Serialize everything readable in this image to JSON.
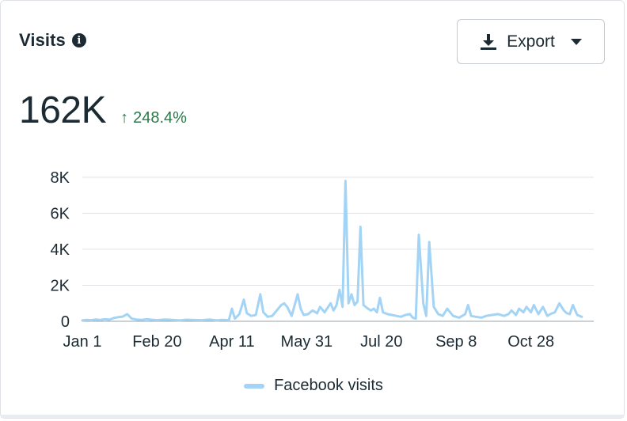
{
  "header": {
    "title": "Visits",
    "info_icon": "info-icon",
    "export_label": "Export",
    "export_icon": "download-icon"
  },
  "metric": {
    "value": "162K",
    "delta": "248.4%",
    "delta_direction": "up",
    "delta_color": "#2b7a4b"
  },
  "chart_data": {
    "type": "line",
    "title": "",
    "xlabel": "",
    "ylabel": "",
    "ylim": [
      0,
      8000
    ],
    "yticks": [
      0,
      2000,
      4000,
      6000,
      8000
    ],
    "ytick_labels": [
      "0",
      "2K",
      "4K",
      "6K",
      "8K"
    ],
    "xticks": [
      "Jan 1",
      "Feb 20",
      "Apr 11",
      "May 31",
      "Jul 20",
      "Sep 8",
      "Oct 28"
    ],
    "xtick_days": [
      0,
      50,
      100,
      150,
      200,
      250,
      300
    ],
    "grid": true,
    "legend_position": "bottom-center",
    "series": [
      {
        "name": "Facebook visits",
        "color": "#a3d4f5",
        "x_days": [
          0,
          3,
          6,
          9,
          12,
          15,
          18,
          21,
          24,
          27,
          30,
          33,
          36,
          40,
          43,
          46,
          50,
          55,
          60,
          65,
          70,
          75,
          80,
          85,
          90,
          93,
          96,
          98,
          100,
          102,
          105,
          108,
          110,
          113,
          116,
          119,
          121,
          124,
          127,
          130,
          133,
          135,
          137,
          140,
          144,
          146,
          148,
          151,
          154,
          157,
          159,
          162,
          164,
          166,
          168,
          170,
          172,
          174,
          176,
          178,
          180,
          182,
          184,
          186,
          188,
          191,
          193,
          195,
          197,
          199,
          201,
          204,
          207,
          210,
          213,
          216,
          219,
          221,
          223,
          225,
          228,
          230,
          232,
          235,
          238,
          241,
          244,
          248,
          252,
          256,
          258,
          260,
          263,
          267,
          270,
          274,
          278,
          282,
          285,
          287,
          290,
          292,
          295,
          297,
          300,
          302,
          305,
          308,
          311,
          313,
          316,
          319,
          322,
          324,
          326,
          328,
          331,
          334
        ],
        "values": [
          50,
          80,
          60,
          100,
          70,
          120,
          90,
          180,
          230,
          260,
          400,
          150,
          100,
          80,
          120,
          90,
          60,
          100,
          80,
          50,
          90,
          70,
          60,
          100,
          50,
          80,
          70,
          60,
          700,
          150,
          400,
          1200,
          450,
          300,
          350,
          1500,
          500,
          250,
          300,
          600,
          900,
          1000,
          800,
          300,
          1500,
          700,
          350,
          400,
          600,
          450,
          800,
          500,
          750,
          1000,
          600,
          900,
          1750,
          800,
          7800,
          1000,
          1500,
          900,
          1100,
          5250,
          900,
          700,
          600,
          700,
          500,
          1300,
          500,
          400,
          350,
          300,
          250,
          350,
          400,
          200,
          150,
          4800,
          1000,
          300,
          4400,
          800,
          400,
          300,
          700,
          300,
          200,
          400,
          900,
          300,
          250,
          200,
          300,
          350,
          400,
          300,
          400,
          600,
          350,
          700,
          500,
          800,
          500,
          900,
          400,
          800,
          300,
          400,
          500,
          1000,
          600,
          450,
          400,
          900,
          350,
          250
        ]
      }
    ]
  }
}
